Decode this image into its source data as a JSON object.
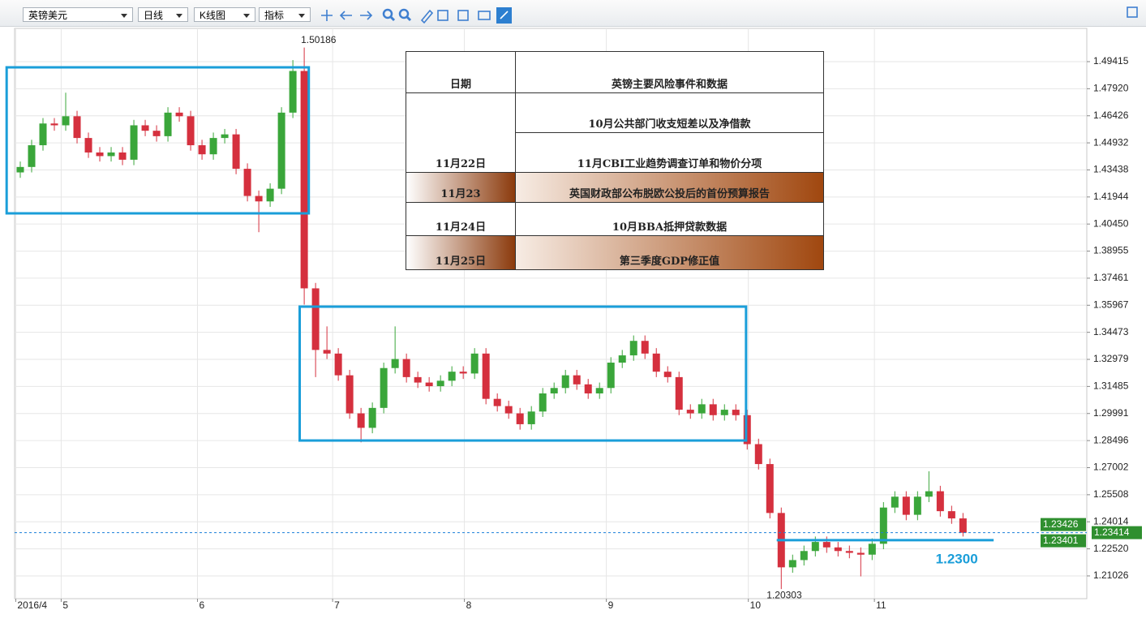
{
  "toolbar": {
    "symbol": "英镑美元",
    "period": "日线",
    "chart_style": "K线图",
    "indicator": "指标"
  },
  "chart_data": {
    "type": "candlestick",
    "panel_label": "K",
    "colors": {
      "up": "#3aa63a",
      "down": "#d5303e",
      "grid": "#e6e6e6",
      "box": "#1a9ed9",
      "last": "#1a7fd9"
    },
    "grid": true,
    "xlim": [
      0,
      94.4
    ],
    "xticks": [
      {
        "value": 0.1,
        "label": "2016/4"
      },
      {
        "value": 4.1,
        "label": "5"
      },
      {
        "value": 16.1,
        "label": "6"
      },
      {
        "value": 28,
        "label": "7"
      },
      {
        "value": 39.6,
        "label": "8"
      },
      {
        "value": 52.1,
        "label": "9"
      },
      {
        "value": 64.6,
        "label": "10"
      },
      {
        "value": 75.7,
        "label": "11"
      }
    ],
    "ylim": [
      1.1977,
      1.5125
    ],
    "yticks": [
      1.49415,
      {
        "value": 1.4792,
        "label": "1.47920"
      },
      1.46426,
      1.44932,
      1.43438,
      1.41944,
      {
        "value": 1.4045,
        "label": "1.40450"
      },
      1.38955,
      1.37461,
      1.35967,
      1.34473,
      1.32979,
      1.31485,
      1.29991,
      1.28496,
      1.27002,
      1.25508,
      1.24014,
      {
        "value": 1.2252,
        "label": "1.22520"
      },
      1.21026
    ],
    "open": [
      1.433,
      1.436,
      1.448,
      1.46,
      1.459,
      1.464,
      1.452,
      1.444,
      1.442,
      1.444,
      1.44,
      1.459,
      1.456,
      1.453,
      1.466,
      1.464,
      1.448,
      1.443,
      1.452,
      1.454,
      1.435,
      1.42,
      1.417,
      1.424,
      1.466,
      1.489,
      1.369,
      1.335,
      1.333,
      1.321,
      1.3,
      1.292,
      1.303,
      1.325,
      1.33,
      1.32,
      1.317,
      1.315,
      1.318,
      1.323,
      1.322,
      1.333,
      1.308,
      1.304,
      1.3,
      1.294,
      1.301,
      1.311,
      1.314,
      1.321,
      1.316,
      1.311,
      1.314,
      1.328,
      1.332,
      1.34,
      1.333,
      1.323,
      1.32,
      1.302,
      1.3,
      1.305,
      1.299,
      1.302,
      1.299,
      1.283,
      1.272,
      1.245,
      1.215,
      1.219,
      1.224,
      1.229,
      1.226,
      1.224,
      1.223,
      1.222,
      1.228,
      1.248,
      1.254,
      1.244,
      1.254,
      1.257,
      1.246,
      1.242
    ],
    "high": [
      1.439,
      1.451,
      1.463,
      1.463,
      1.477,
      1.467,
      1.455,
      1.447,
      1.447,
      1.447,
      1.462,
      1.462,
      1.459,
      1.469,
      1.469,
      1.467,
      1.451,
      1.455,
      1.457,
      1.457,
      1.438,
      1.423,
      1.427,
      1.469,
      1.495,
      1.5019,
      1.372,
      1.348,
      1.336,
      1.324,
      1.303,
      1.306,
      1.328,
      1.348,
      1.333,
      1.323,
      1.32,
      1.321,
      1.326,
      1.326,
      1.336,
      1.336,
      1.311,
      1.307,
      1.303,
      1.304,
      1.314,
      1.317,
      1.324,
      1.324,
      1.319,
      1.317,
      1.331,
      1.335,
      1.343,
      1.343,
      1.336,
      1.326,
      1.323,
      1.305,
      1.308,
      1.308,
      1.305,
      1.305,
      1.302,
      1.286,
      1.275,
      1.248,
      1.222,
      1.227,
      1.232,
      1.232,
      1.229,
      1.227,
      1.226,
      1.231,
      1.251,
      1.257,
      1.257,
      1.257,
      1.268,
      1.26,
      1.249,
      1.245
    ],
    "low": [
      1.43,
      1.433,
      1.445,
      1.456,
      1.456,
      1.449,
      1.441,
      1.439,
      1.439,
      1.437,
      1.437,
      1.453,
      1.45,
      1.45,
      1.461,
      1.445,
      1.44,
      1.44,
      1.449,
      1.432,
      1.417,
      1.4,
      1.414,
      1.421,
      1.463,
      1.36,
      1.32,
      1.33,
      1.318,
      1.297,
      1.284,
      1.289,
      1.3,
      1.322,
      1.317,
      1.314,
      1.312,
      1.312,
      1.315,
      1.319,
      1.319,
      1.305,
      1.301,
      1.297,
      1.291,
      1.291,
      1.298,
      1.308,
      1.311,
      1.313,
      1.308,
      1.308,
      1.311,
      1.325,
      1.329,
      1.33,
      1.32,
      1.317,
      1.299,
      1.297,
      1.297,
      1.296,
      1.296,
      1.296,
      1.28,
      1.269,
      1.242,
      1.203,
      1.212,
      1.216,
      1.221,
      1.223,
      1.221,
      1.22,
      1.21,
      1.219,
      1.225,
      1.245,
      1.241,
      1.241,
      1.251,
      1.243,
      1.239,
      1.232
    ],
    "close": [
      1.436,
      1.448,
      1.46,
      1.459,
      1.464,
      1.452,
      1.444,
      1.442,
      1.444,
      1.44,
      1.459,
      1.456,
      1.453,
      1.466,
      1.464,
      1.448,
      1.443,
      1.452,
      1.454,
      1.435,
      1.42,
      1.417,
      1.424,
      1.466,
      1.489,
      1.369,
      1.335,
      1.333,
      1.321,
      1.3,
      1.292,
      1.303,
      1.325,
      1.33,
      1.32,
      1.317,
      1.315,
      1.318,
      1.323,
      1.322,
      1.333,
      1.308,
      1.304,
      1.3,
      1.294,
      1.301,
      1.311,
      1.314,
      1.321,
      1.316,
      1.311,
      1.314,
      1.328,
      1.332,
      1.34,
      1.333,
      1.323,
      1.32,
      1.302,
      1.3,
      1.305,
      1.299,
      1.302,
      1.299,
      1.283,
      1.272,
      1.245,
      1.215,
      1.219,
      1.224,
      1.229,
      1.226,
      1.224,
      1.223,
      1.222,
      1.228,
      1.248,
      1.254,
      1.244,
      1.254,
      1.257,
      1.246,
      1.242,
      1.2341
    ],
    "high_label": 1.50186,
    "low_label": 1.20303,
    "boxes": [
      {
        "x": [
          -0.7,
          25.9
        ],
        "y": [
          1.4104,
          1.491
        ]
      },
      {
        "x": [
          25.1,
          64.4
        ],
        "y": [
          1.285,
          1.3589
        ]
      }
    ],
    "support": {
      "value": 1.23,
      "label": "1.2300",
      "x": [
        67.1,
        86.2
      ]
    },
    "last_price": 1.23414,
    "price_tags": [
      1.23426,
      1.23401
    ]
  },
  "table": {
    "header": [
      "日期",
      "英镑主要风险事件和数据"
    ],
    "rows": [
      {
        "date": "11月22日",
        "events": [
          "10月公共部门收支短差以及净借款",
          "11月CBI工业趋势调查订单和物价分项"
        ]
      },
      {
        "date": "11月23",
        "events": [
          "英国财政部公布脱欧公投后的首份预算报告"
        ]
      },
      {
        "date": "11月24日",
        "events": [
          "10月BBA抵押贷款数据"
        ]
      },
      {
        "date": "11月25日",
        "events": [
          "第三季度GDP修正值"
        ]
      }
    ]
  }
}
